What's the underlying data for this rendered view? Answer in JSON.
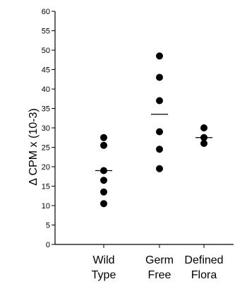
{
  "chart_data": {
    "type": "scatter",
    "ylabel": "Δ  CPM x (10-3)",
    "ylim": [
      0,
      60
    ],
    "yticks": [
      0,
      5,
      10,
      15,
      20,
      25,
      30,
      35,
      40,
      45,
      50,
      55,
      60
    ],
    "categories": [
      {
        "line1": "Wild",
        "line2": "Type"
      },
      {
        "line1": "Germ",
        "line2": "Free"
      },
      {
        "line1": "Defined",
        "line2": "Flora"
      }
    ],
    "groups": [
      {
        "points": [
          27.5,
          25.5,
          19,
          16.5,
          13.5,
          10.5
        ],
        "mean": 19
      },
      {
        "points": [
          48.5,
          43,
          37,
          29,
          24.5,
          19.5
        ],
        "mean": 33.5
      },
      {
        "points": [
          30,
          27.5,
          26
        ],
        "mean": 27.5
      }
    ],
    "grid": false,
    "marker_color": "#000000"
  }
}
